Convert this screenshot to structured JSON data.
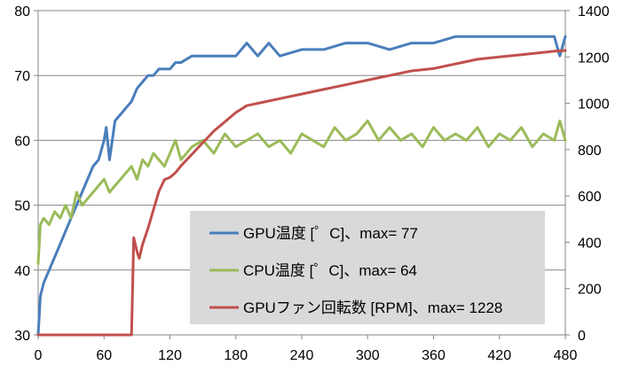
{
  "chart_data": {
    "type": "line",
    "title": "",
    "xlabel": "",
    "ylabel": "",
    "y2label": "",
    "grid": true,
    "legend_position": "bottom-right inside",
    "x_ticks": [
      0,
      60,
      120,
      180,
      240,
      300,
      360,
      420,
      480
    ],
    "xlim": [
      0,
      480
    ],
    "ylim_left": [
      30,
      80
    ],
    "y_ticks_left": [
      30,
      40,
      50,
      60,
      70,
      80
    ],
    "ylim_right": [
      0,
      1400
    ],
    "y_ticks_right": [
      0,
      200,
      400,
      600,
      800,
      1000,
      1200,
      1400
    ],
    "series": [
      {
        "name": "GPU温度 [゜C]、max= 77",
        "axis": "left",
        "color": "#4a7ebb",
        "x": [
          0,
          2,
          5,
          10,
          15,
          20,
          25,
          30,
          35,
          40,
          45,
          50,
          55,
          60,
          62,
          65,
          70,
          75,
          80,
          85,
          90,
          95,
          100,
          105,
          110,
          115,
          120,
          125,
          130,
          140,
          150,
          160,
          180,
          190,
          200,
          210,
          220,
          240,
          260,
          280,
          300,
          320,
          340,
          360,
          380,
          400,
          420,
          440,
          460,
          470,
          475,
          480
        ],
        "y": [
          30,
          36,
          38,
          40,
          42,
          44,
          46,
          48,
          50,
          52,
          54,
          56,
          57,
          60,
          62,
          57,
          63,
          64,
          65,
          66,
          68,
          69,
          70,
          70,
          71,
          71,
          71,
          72,
          72,
          73,
          73,
          73,
          73,
          75,
          73,
          75,
          73,
          74,
          74,
          75,
          75,
          74,
          75,
          75,
          76,
          76,
          76,
          76,
          76,
          76,
          73,
          76
        ]
      },
      {
        "name": "CPU温度 [゜C]、max= 64",
        "axis": "left",
        "color": "#9bbb59",
        "x": [
          0,
          2,
          5,
          10,
          15,
          20,
          25,
          30,
          35,
          40,
          45,
          50,
          55,
          60,
          65,
          70,
          75,
          80,
          85,
          90,
          95,
          100,
          105,
          110,
          115,
          120,
          125,
          130,
          140,
          150,
          160,
          170,
          180,
          190,
          200,
          210,
          220,
          230,
          240,
          250,
          260,
          270,
          280,
          290,
          300,
          310,
          320,
          330,
          340,
          350,
          360,
          370,
          380,
          390,
          400,
          410,
          420,
          430,
          440,
          450,
          460,
          470,
          475,
          480
        ],
        "y": [
          41,
          47,
          48,
          47,
          49,
          48,
          50,
          48,
          52,
          50,
          51,
          52,
          53,
          54,
          52,
          53,
          54,
          55,
          56,
          54,
          57,
          56,
          58,
          57,
          56,
          58,
          60,
          57,
          59,
          60,
          58,
          61,
          59,
          60,
          61,
          59,
          60,
          58,
          61,
          60,
          59,
          62,
          60,
          61,
          63,
          60,
          62,
          60,
          61,
          59,
          62,
          60,
          61,
          60,
          62,
          59,
          61,
          60,
          62,
          59,
          61,
          60,
          63,
          60
        ]
      },
      {
        "name": "GPUファン回転数 [RPM]、max= 1228",
        "axis": "right",
        "color": "#c0504d",
        "x": [
          0,
          30,
          60,
          85,
          87,
          90,
          92,
          95,
          100,
          105,
          110,
          115,
          120,
          125,
          130,
          140,
          150,
          160,
          170,
          180,
          190,
          200,
          220,
          240,
          260,
          280,
          300,
          320,
          340,
          360,
          380,
          400,
          420,
          440,
          460,
          470,
          480
        ],
        "y": [
          0,
          0,
          0,
          0,
          420,
          360,
          330,
          390,
          460,
          540,
          620,
          670,
          680,
          700,
          730,
          780,
          830,
          880,
          920,
          960,
          990,
          1000,
          1020,
          1040,
          1060,
          1080,
          1100,
          1120,
          1140,
          1150,
          1170,
          1190,
          1200,
          1210,
          1220,
          1225,
          1228
        ]
      }
    ]
  }
}
